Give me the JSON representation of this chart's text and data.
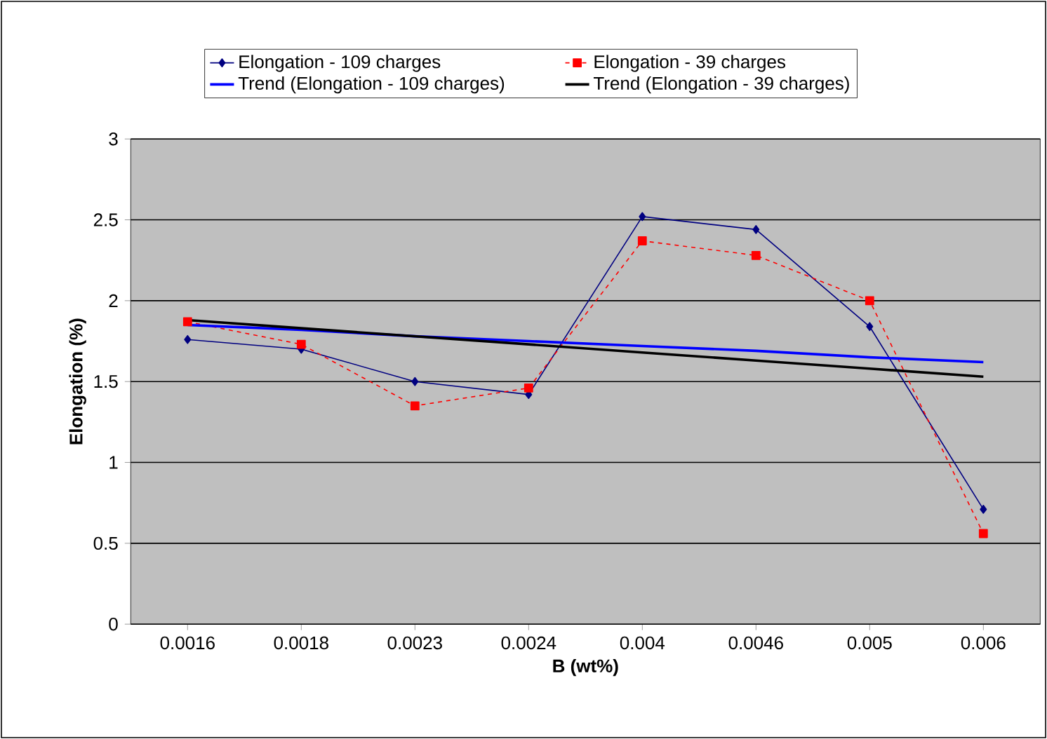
{
  "chart_data": {
    "type": "line",
    "xlabel": "B (wt%)",
    "ylabel": "Elongation (%)",
    "categories": [
      "0.0016",
      "0.0018",
      "0.0023",
      "0.0024",
      "0.004",
      "0.0046",
      "0.005",
      "0.006"
    ],
    "series": [
      {
        "name": "Elongation - 109 charges",
        "color": "#000080",
        "marker": "diamond",
        "line_style": "solid",
        "values": [
          1.76,
          1.7,
          1.5,
          1.42,
          2.52,
          2.44,
          1.84,
          0.71
        ]
      },
      {
        "name": "Elongation - 39 charges",
        "color": "#ff0000",
        "marker": "square",
        "line_style": "dashed",
        "values": [
          1.87,
          1.73,
          1.35,
          1.46,
          2.37,
          2.28,
          2.0,
          0.56
        ]
      },
      {
        "name": "Trend (Elongation - 109 charges)",
        "color": "#0000ff",
        "marker": "none",
        "line_style": "solid",
        "values": [
          1.85,
          1.82,
          1.78,
          1.75,
          1.72,
          1.69,
          1.65,
          1.62
        ]
      },
      {
        "name": "Trend (Elongation - 39 charges)",
        "color": "#000000",
        "marker": "none",
        "line_style": "solid",
        "values": [
          1.88,
          1.83,
          1.78,
          1.73,
          1.68,
          1.63,
          1.58,
          1.53
        ]
      }
    ],
    "ylim": [
      0,
      3
    ],
    "yticks": [
      0,
      0.5,
      1,
      1.5,
      2,
      2.5,
      3
    ],
    "grid": "y",
    "legend": "top"
  }
}
